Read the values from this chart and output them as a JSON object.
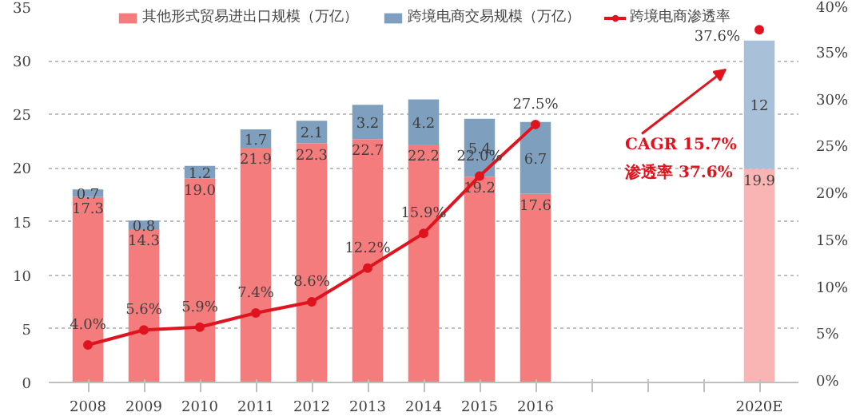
{
  "chart_data": {
    "type": "bar",
    "stacked": true,
    "categories": [
      "2008",
      "2009",
      "2010",
      "2011",
      "2012",
      "2013",
      "2014",
      "2015",
      "2016",
      null,
      null,
      null,
      "2020E"
    ],
    "series": [
      {
        "name": "其他形式贸易进出口规模（万亿）",
        "color": "#f47c7c",
        "colors": [
          null,
          null,
          null,
          null,
          null,
          null,
          null,
          null,
          null,
          null,
          null,
          null,
          "#f9b4b4"
        ],
        "values": [
          17.3,
          14.3,
          19.0,
          21.9,
          22.3,
          22.7,
          22.2,
          19.2,
          17.6,
          null,
          null,
          null,
          19.9
        ],
        "value_labels": [
          "17.3",
          "14.3",
          "19.0",
          "21.9",
          "22.3",
          "22.7",
          "22.2",
          "19.2",
          "17.6",
          null,
          null,
          null,
          "19.9"
        ]
      },
      {
        "name": "跨境电商交易规模（万亿）",
        "color": "#7f9fbe",
        "colors": [
          null,
          null,
          null,
          null,
          null,
          null,
          null,
          null,
          null,
          null,
          null,
          null,
          "#a9c1d8"
        ],
        "values": [
          0.7,
          0.8,
          1.2,
          1.7,
          2.1,
          3.2,
          4.2,
          5.4,
          6.7,
          null,
          null,
          null,
          12
        ],
        "value_labels": [
          "0.7",
          "0.8",
          "1.2",
          "1.7",
          "2.1",
          "3.2",
          "4.2",
          "5.4",
          "6.7",
          null,
          null,
          null,
          "12"
        ]
      },
      {
        "name": "跨境电商渗透率",
        "type": "line",
        "axis": "y2",
        "color": "#e0141e",
        "marker": "circle",
        "values": [
          4.0,
          5.6,
          5.9,
          7.4,
          8.6,
          12.2,
          15.9,
          22.0,
          27.5,
          null,
          null,
          null,
          37.6
        ],
        "value_labels": [
          "4.0%",
          "5.6%",
          "5.9%",
          "7.4%",
          "8.6%",
          "12.2%",
          "15.9%",
          "22.0%",
          "27.5%",
          null,
          null,
          null,
          "37.6%"
        ]
      }
    ],
    "data_labels": true,
    "ylim": [
      0,
      35
    ],
    "yticks": [
      0,
      5,
      10,
      15,
      20,
      25,
      30,
      35
    ],
    "y2lim": [
      0,
      40
    ],
    "y2ticks": [
      {
        "value": 0,
        "label": "0%"
      },
      {
        "value": 5,
        "label": "5%"
      },
      {
        "value": 10,
        "label": "10%"
      },
      {
        "value": 15,
        "label": "15%"
      },
      {
        "value": 20,
        "label": "20%"
      },
      {
        "value": 25,
        "label": "25%"
      },
      {
        "value": 30,
        "label": "30%"
      },
      {
        "value": 35,
        "label": "35%"
      },
      {
        "value": 40,
        "label": "40%"
      }
    ],
    "grid": "y",
    "legend": "top",
    "annotations": [
      "CAGR  15.7%",
      "渗透率  37.6%"
    ]
  }
}
